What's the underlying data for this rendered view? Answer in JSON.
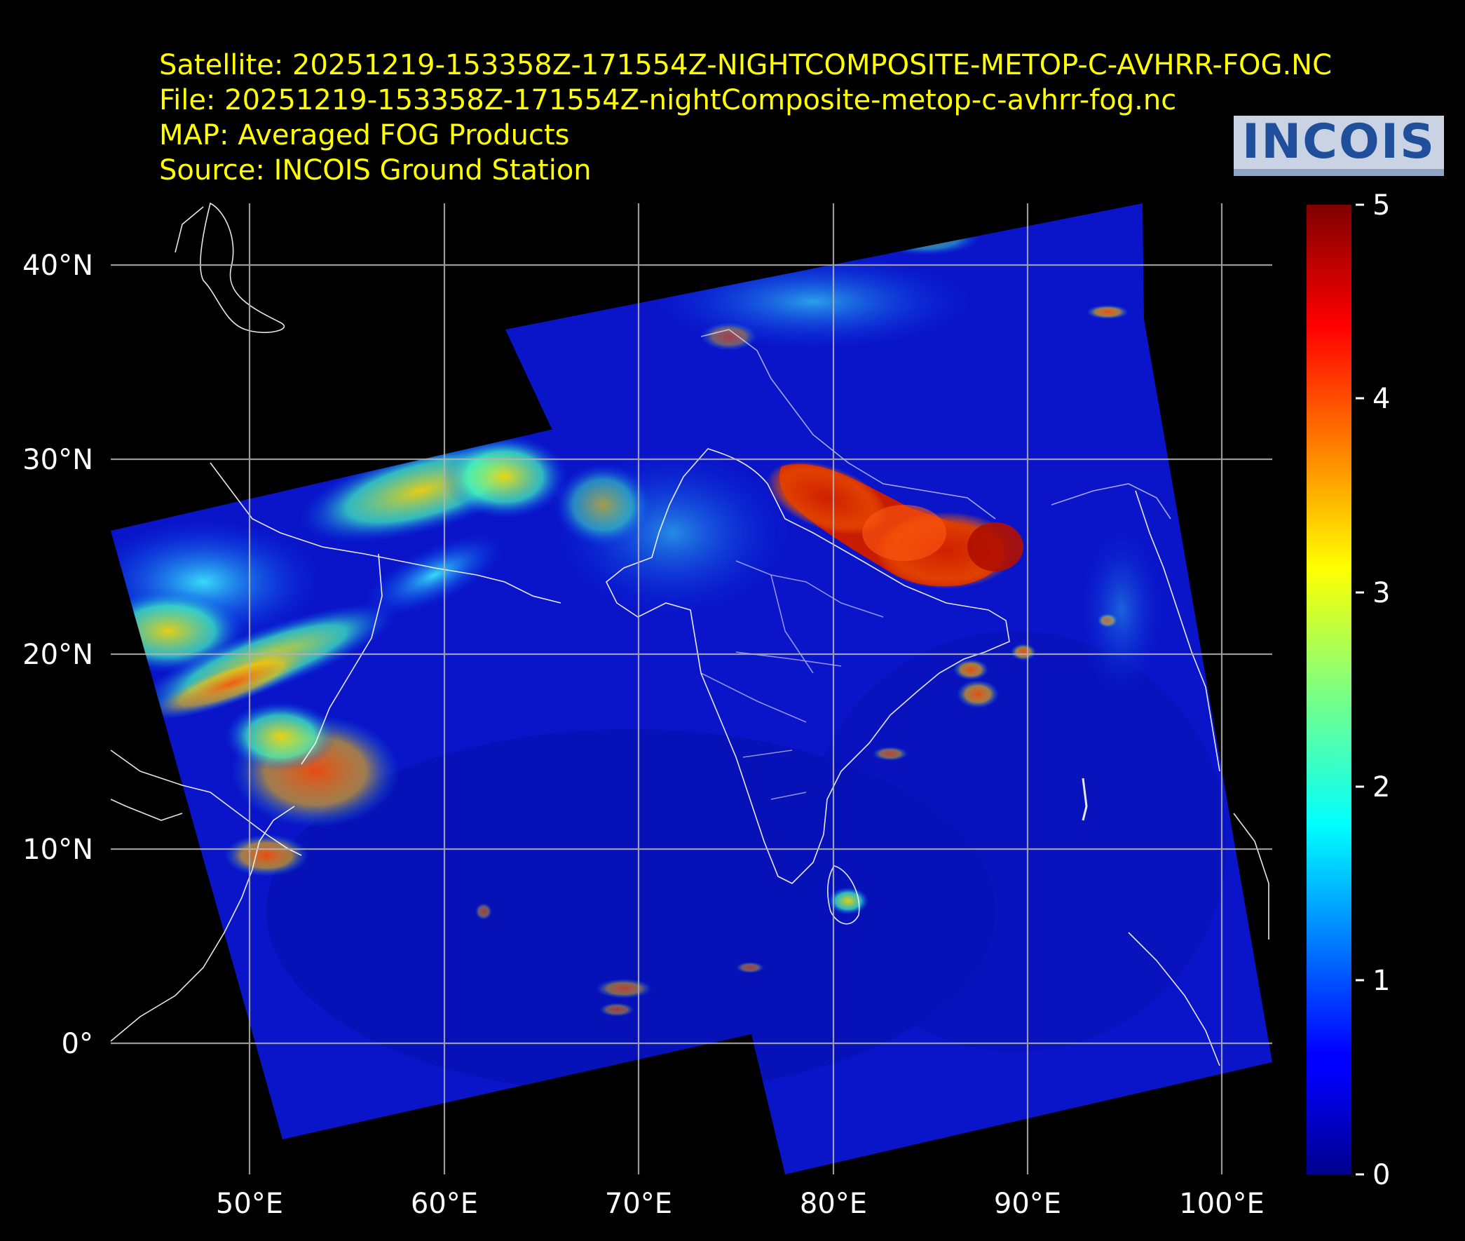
{
  "header": {
    "satellite": "Satellite: 20251219-153358Z-171554Z-NIGHTCOMPOSITE-METOP-C-AVHRR-FOG.NC",
    "file": "File: 20251219-153358Z-171554Z-nightComposite-metop-c-avhrr-fog.nc",
    "map": "MAP: Averaged FOG Products",
    "source": "Source: INCOIS Ground Station"
  },
  "logo": {
    "text": "INCOIS",
    "colors": {
      "primary": "#1f4e9a",
      "background": "#c9d3e4"
    }
  },
  "map": {
    "lat_ticks": [
      "40°N",
      "30°N",
      "20°N",
      "10°N",
      "0°"
    ],
    "lon_ticks": [
      "50°E",
      "60°E",
      "70°E",
      "80°E",
      "90°E",
      "100°E"
    ],
    "grid": true
  },
  "colorbar": {
    "colormap": "jet",
    "ticks": [
      "5",
      "4",
      "3",
      "2",
      "1",
      "0"
    ],
    "range": [
      0,
      5
    ]
  }
}
